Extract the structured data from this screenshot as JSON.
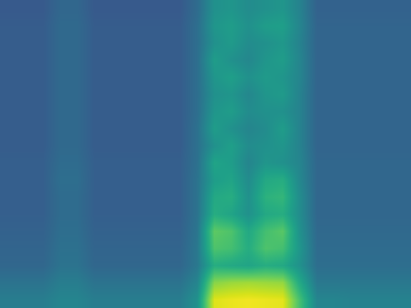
{
  "chart_data": {
    "type": "heatmap",
    "tick_labels": false,
    "color": "Viridis",
    "zlim": [
      0,
      1
    ],
    "cells": [
      [
        0.42,
        0.42,
        0.42,
        0.45,
        0.45,
        0.42,
        0.42,
        0.42,
        0.42,
        0.42,
        0.42,
        0.5,
        0.95,
        0.97,
        0.98,
        0.97,
        0.96,
        0.7,
        0.45,
        0.45,
        0.44,
        0.44,
        0.44,
        0.44
      ],
      [
        0.38,
        0.38,
        0.38,
        0.42,
        0.42,
        0.38,
        0.38,
        0.38,
        0.38,
        0.38,
        0.38,
        0.45,
        0.82,
        0.85,
        0.86,
        0.85,
        0.84,
        0.6,
        0.4,
        0.4,
        0.4,
        0.4,
        0.4,
        0.4
      ],
      [
        0.33,
        0.33,
        0.33,
        0.38,
        0.38,
        0.33,
        0.33,
        0.33,
        0.33,
        0.33,
        0.33,
        0.4,
        0.62,
        0.6,
        0.58,
        0.62,
        0.6,
        0.5,
        0.36,
        0.36,
        0.36,
        0.36,
        0.36,
        0.36
      ],
      [
        0.32,
        0.32,
        0.32,
        0.37,
        0.37,
        0.32,
        0.32,
        0.32,
        0.32,
        0.32,
        0.32,
        0.4,
        0.72,
        0.7,
        0.62,
        0.72,
        0.7,
        0.52,
        0.35,
        0.35,
        0.35,
        0.35,
        0.35,
        0.35
      ],
      [
        0.31,
        0.31,
        0.31,
        0.36,
        0.36,
        0.31,
        0.31,
        0.31,
        0.31,
        0.31,
        0.31,
        0.39,
        0.75,
        0.72,
        0.6,
        0.7,
        0.74,
        0.5,
        0.34,
        0.34,
        0.34,
        0.34,
        0.34,
        0.34
      ],
      [
        0.3,
        0.3,
        0.3,
        0.35,
        0.35,
        0.3,
        0.3,
        0.3,
        0.3,
        0.3,
        0.3,
        0.38,
        0.62,
        0.58,
        0.5,
        0.6,
        0.62,
        0.48,
        0.33,
        0.33,
        0.33,
        0.33,
        0.33,
        0.33
      ],
      [
        0.3,
        0.3,
        0.3,
        0.35,
        0.35,
        0.3,
        0.3,
        0.3,
        0.3,
        0.3,
        0.3,
        0.38,
        0.6,
        0.62,
        0.5,
        0.64,
        0.66,
        0.48,
        0.33,
        0.33,
        0.33,
        0.33,
        0.33,
        0.33
      ],
      [
        0.3,
        0.3,
        0.3,
        0.36,
        0.36,
        0.3,
        0.3,
        0.3,
        0.3,
        0.3,
        0.3,
        0.38,
        0.55,
        0.58,
        0.48,
        0.6,
        0.62,
        0.46,
        0.33,
        0.33,
        0.33,
        0.33,
        0.33,
        0.33
      ],
      [
        0.3,
        0.3,
        0.3,
        0.35,
        0.35,
        0.3,
        0.3,
        0.3,
        0.3,
        0.3,
        0.3,
        0.37,
        0.58,
        0.55,
        0.45,
        0.52,
        0.5,
        0.45,
        0.33,
        0.33,
        0.33,
        0.33,
        0.33,
        0.33
      ],
      [
        0.29,
        0.29,
        0.29,
        0.34,
        0.34,
        0.29,
        0.29,
        0.29,
        0.29,
        0.29,
        0.29,
        0.37,
        0.5,
        0.56,
        0.48,
        0.5,
        0.52,
        0.44,
        0.32,
        0.32,
        0.32,
        0.32,
        0.32,
        0.32
      ],
      [
        0.29,
        0.29,
        0.29,
        0.34,
        0.34,
        0.29,
        0.29,
        0.29,
        0.29,
        0.29,
        0.29,
        0.37,
        0.55,
        0.5,
        0.45,
        0.48,
        0.55,
        0.44,
        0.32,
        0.32,
        0.32,
        0.32,
        0.32,
        0.32
      ],
      [
        0.29,
        0.29,
        0.29,
        0.34,
        0.34,
        0.29,
        0.29,
        0.29,
        0.29,
        0.29,
        0.29,
        0.36,
        0.52,
        0.55,
        0.48,
        0.5,
        0.5,
        0.44,
        0.32,
        0.32,
        0.32,
        0.32,
        0.32,
        0.32
      ],
      [
        0.29,
        0.29,
        0.29,
        0.34,
        0.34,
        0.29,
        0.29,
        0.29,
        0.29,
        0.29,
        0.29,
        0.36,
        0.5,
        0.52,
        0.46,
        0.52,
        0.54,
        0.44,
        0.32,
        0.32,
        0.32,
        0.32,
        0.32,
        0.32
      ],
      [
        0.29,
        0.29,
        0.29,
        0.34,
        0.34,
        0.29,
        0.29,
        0.29,
        0.29,
        0.29,
        0.29,
        0.36,
        0.52,
        0.56,
        0.5,
        0.54,
        0.52,
        0.45,
        0.32,
        0.32,
        0.32,
        0.32,
        0.32,
        0.32
      ],
      [
        0.29,
        0.29,
        0.29,
        0.34,
        0.34,
        0.29,
        0.29,
        0.29,
        0.29,
        0.29,
        0.29,
        0.36,
        0.55,
        0.5,
        0.46,
        0.52,
        0.55,
        0.45,
        0.32,
        0.32,
        0.32,
        0.32,
        0.32,
        0.32
      ],
      [
        0.29,
        0.29,
        0.29,
        0.34,
        0.34,
        0.29,
        0.29,
        0.29,
        0.29,
        0.29,
        0.29,
        0.36,
        0.5,
        0.54,
        0.48,
        0.5,
        0.53,
        0.44,
        0.32,
        0.32,
        0.32,
        0.32,
        0.32,
        0.32
      ],
      [
        0.29,
        0.29,
        0.29,
        0.34,
        0.34,
        0.29,
        0.29,
        0.29,
        0.29,
        0.29,
        0.29,
        0.36,
        0.52,
        0.55,
        0.5,
        0.55,
        0.56,
        0.45,
        0.32,
        0.32,
        0.32,
        0.32,
        0.32,
        0.32
      ],
      [
        0.28,
        0.28,
        0.28,
        0.33,
        0.33,
        0.28,
        0.28,
        0.28,
        0.28,
        0.28,
        0.28,
        0.35,
        0.5,
        0.52,
        0.48,
        0.5,
        0.52,
        0.44,
        0.31,
        0.31,
        0.31,
        0.31,
        0.31,
        0.31
      ]
    ]
  }
}
